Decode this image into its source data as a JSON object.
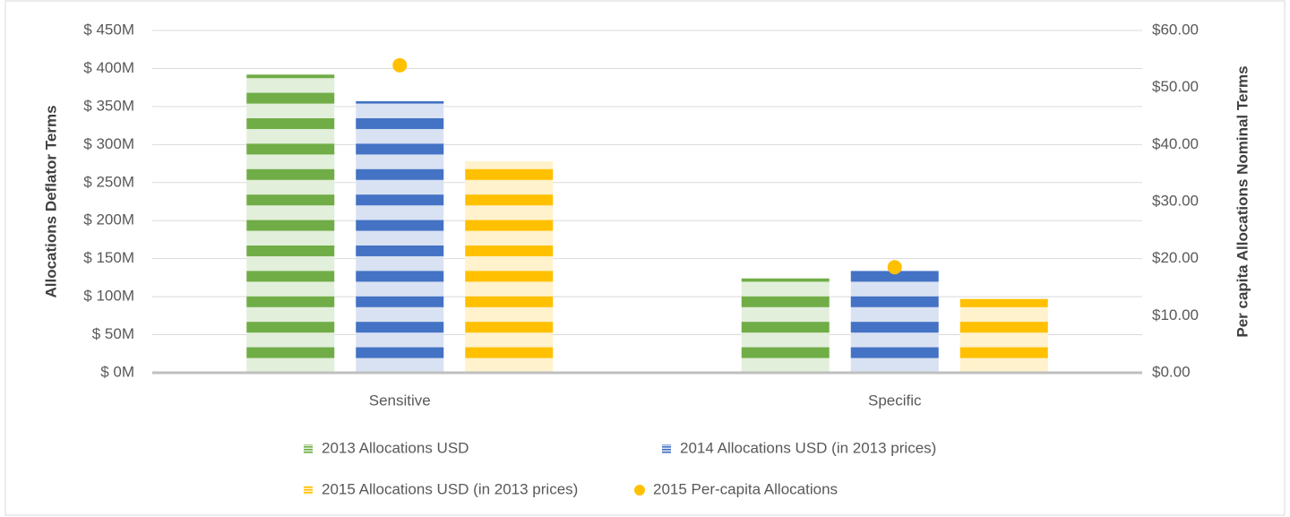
{
  "chart_data": {
    "type": "bar",
    "y_label": "Allocations Deflator Terms",
    "y2_label": "Per capita Allocations Nominal Terms",
    "categories": [
      "Sensitive",
      "Specific"
    ],
    "series": [
      {
        "name": "2013 Allocations USD",
        "color": "#70ad47",
        "light": "#e2efda",
        "values": [
          392,
          124
        ]
      },
      {
        "name": "2014 Allocations USD (in 2013 prices)",
        "color": "#4472c4",
        "light": "#d9e2f3",
        "values": [
          357,
          134
        ]
      },
      {
        "name": "2015 Allocations USD (in 2013 prices)",
        "color": "#ffc000",
        "light": "#fff2cc",
        "values": [
          278,
          97
        ]
      },
      {
        "name": "2015 Per-capita Allocations",
        "color": "#ffc000",
        "type": "scatter",
        "axis": "y2",
        "values": [
          53.9,
          18.5
        ]
      }
    ],
    "ylim": [
      0,
      450
    ],
    "yticks": [
      {
        "value": 0,
        "label": "$ 0M"
      },
      {
        "value": 50,
        "label": "$ 50M"
      },
      {
        "value": 100,
        "label": "$ 100M"
      },
      {
        "value": 150,
        "label": "$ 150M"
      },
      {
        "value": 200,
        "label": "$ 200M"
      },
      {
        "value": 250,
        "label": "$ 250M"
      },
      {
        "value": 300,
        "label": "$ 300M"
      },
      {
        "value": 350,
        "label": "$ 350M"
      },
      {
        "value": 400,
        "label": "$ 400M"
      },
      {
        "value": 450,
        "label": "$ 450M"
      }
    ],
    "y2lim": [
      0,
      60
    ],
    "y2ticks": [
      {
        "value": 0,
        "label": "$0.00"
      },
      {
        "value": 10,
        "label": "$10.00"
      },
      {
        "value": 20,
        "label": "$20.00"
      },
      {
        "value": 30,
        "label": "$30.00"
      },
      {
        "value": 40,
        "label": "$40.00"
      },
      {
        "value": 50,
        "label": "$50.00"
      },
      {
        "value": 60,
        "label": "$60.00"
      }
    ],
    "grid": true,
    "legend": "bottom"
  }
}
